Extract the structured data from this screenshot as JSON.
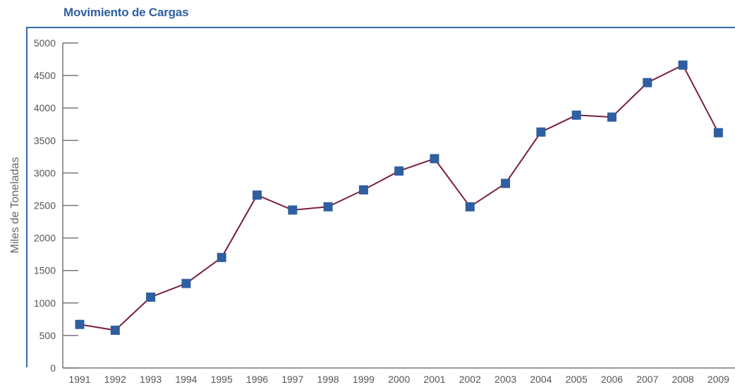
{
  "chart_data": {
    "type": "line",
    "title": "Movimiento de Cargas",
    "xlabel": "",
    "ylabel": "Miles de Toneladas",
    "ylim": [
      0,
      5000
    ],
    "yticks": [
      0,
      500,
      1000,
      1500,
      2000,
      2500,
      3000,
      3500,
      4000,
      4500,
      5000
    ],
    "categories": [
      "1991",
      "1992",
      "1993",
      "1994",
      "1995",
      "1996",
      "1997",
      "1998",
      "1999",
      "2000",
      "2001",
      "2002",
      "2003",
      "2004",
      "2005",
      "2006",
      "2007",
      "2008",
      "2009"
    ],
    "series": [
      {
        "values": [
          670,
          580,
          1090,
          1300,
          1700,
          2660,
          2430,
          2480,
          2740,
          3030,
          3220,
          2480,
          2840,
          3630,
          3890,
          3860,
          4390,
          4660,
          3620
        ]
      }
    ],
    "grid": false,
    "legend": "none",
    "colors": {
      "line": "#7a1f3d",
      "marker": "#2f5fa0",
      "frame": "#3a6aa8",
      "axis": "#777777",
      "title": "#2f5fa0"
    }
  }
}
